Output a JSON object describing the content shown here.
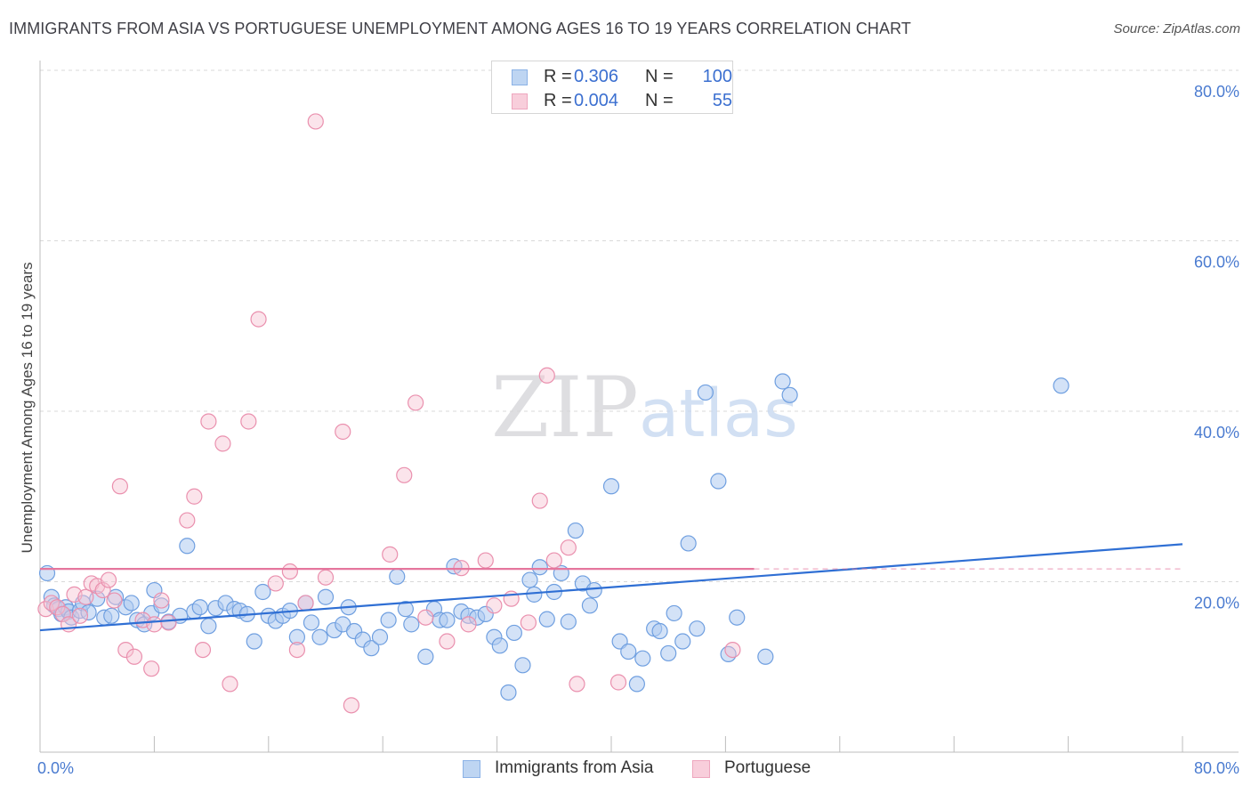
{
  "header": {
    "title": "IMMIGRANTS FROM ASIA VS PORTUGUESE UNEMPLOYMENT AMONG AGES 16 TO 19 YEARS CORRELATION CHART",
    "source": "Source: ZipAtlas.com"
  },
  "watermark": {
    "zip": "ZIP",
    "atlas": "atlas"
  },
  "stats_legend": {
    "rows": [
      {
        "r_label": "R =",
        "r_value": "0.306",
        "n_label": "N =",
        "n_value": "100",
        "color": "#8fb4e8"
      },
      {
        "r_label": "R =",
        "r_value": "0.004",
        "n_label": "N =",
        "n_value": "55",
        "color": "#f2a6bf"
      }
    ]
  },
  "series_legend": [
    {
      "name": "Immigrants from Asia",
      "color": "#8fb4e8"
    },
    {
      "name": "Portuguese",
      "color": "#f2a6bf"
    }
  ],
  "colors": {
    "asia_fill": "#aecbf0",
    "asia_stroke": "#6f9fe0",
    "asia_line": "#2f6fd4",
    "port_fill": "#f7c3d3",
    "port_stroke": "#ea90ae",
    "port_line": "#e5769d",
    "axis_text": "#4a7bd0",
    "grid": "#d9d9d9"
  },
  "chart_data": {
    "type": "scatter",
    "title": "IMMIGRANTS FROM ASIA VS PORTUGUESE UNEMPLOYMENT AMONG AGES 16 TO 19 YEARS CORRELATION CHART",
    "xlabel": "",
    "ylabel": "Unemployment Among Ages 16 to 19 years",
    "xlim": [
      0,
      80
    ],
    "ylim": [
      0,
      80
    ],
    "x_tick_labels": [
      "0.0%",
      "80.0%"
    ],
    "y_ticks": [
      20,
      40,
      60,
      80
    ],
    "y_tick_labels": [
      "20.0%",
      "40.0%",
      "60.0%",
      "80.0%"
    ],
    "grid": true,
    "legend_position": "top-center",
    "series": [
      {
        "name": "Immigrants from Asia",
        "r": 0.306,
        "n": 100,
        "trend": {
          "x": [
            0,
            80
          ],
          "y": [
            14.3,
            24.4
          ]
        },
        "points": [
          [
            0.5,
            21.0
          ],
          [
            0.8,
            18.2
          ],
          [
            1.0,
            17.2
          ],
          [
            1.3,
            16.8
          ],
          [
            1.5,
            16.2
          ],
          [
            1.8,
            17.0
          ],
          [
            2.0,
            16.5
          ],
          [
            2.2,
            15.8
          ],
          [
            2.8,
            16.6
          ],
          [
            3.0,
            17.5
          ],
          [
            3.4,
            16.4
          ],
          [
            4.0,
            18.0
          ],
          [
            4.5,
            15.8
          ],
          [
            5.0,
            16.0
          ],
          [
            5.3,
            18.2
          ],
          [
            6.0,
            17.0
          ],
          [
            6.4,
            17.5
          ],
          [
            6.8,
            15.5
          ],
          [
            7.3,
            15.0
          ],
          [
            7.8,
            16.3
          ],
          [
            8.0,
            19.0
          ],
          [
            8.5,
            17.2
          ],
          [
            9.0,
            15.3
          ],
          [
            9.8,
            16.0
          ],
          [
            10.3,
            24.2
          ],
          [
            10.8,
            16.5
          ],
          [
            11.2,
            17.0
          ],
          [
            11.8,
            14.8
          ],
          [
            12.3,
            16.9
          ],
          [
            13.0,
            17.5
          ],
          [
            13.6,
            16.8
          ],
          [
            14.0,
            16.6
          ],
          [
            14.5,
            16.2
          ],
          [
            15.0,
            13.0
          ],
          [
            15.6,
            18.8
          ],
          [
            16.0,
            16.0
          ],
          [
            16.5,
            15.4
          ],
          [
            17.0,
            16.0
          ],
          [
            17.5,
            16.6
          ],
          [
            18.0,
            13.5
          ],
          [
            18.6,
            17.5
          ],
          [
            19.0,
            15.2
          ],
          [
            19.6,
            13.5
          ],
          [
            20.0,
            18.2
          ],
          [
            20.6,
            14.3
          ],
          [
            21.2,
            15.0
          ],
          [
            21.6,
            17.0
          ],
          [
            22.0,
            14.2
          ],
          [
            22.6,
            13.2
          ],
          [
            23.2,
            12.2
          ],
          [
            23.8,
            13.5
          ],
          [
            24.4,
            15.5
          ],
          [
            25.0,
            20.6
          ],
          [
            25.6,
            16.8
          ],
          [
            26.0,
            15.0
          ],
          [
            27.0,
            11.2
          ],
          [
            27.6,
            16.8
          ],
          [
            28.0,
            15.5
          ],
          [
            28.5,
            15.5
          ],
          [
            29.0,
            21.8
          ],
          [
            29.5,
            16.5
          ],
          [
            30.0,
            16.0
          ],
          [
            30.6,
            15.8
          ],
          [
            31.2,
            16.2
          ],
          [
            31.8,
            13.5
          ],
          [
            32.2,
            12.5
          ],
          [
            32.8,
            7.0
          ],
          [
            33.2,
            14.0
          ],
          [
            33.8,
            10.2
          ],
          [
            34.3,
            20.2
          ],
          [
            34.6,
            18.5
          ],
          [
            35.0,
            21.7
          ],
          [
            35.5,
            15.6
          ],
          [
            36.0,
            18.8
          ],
          [
            36.5,
            21.0
          ],
          [
            37.0,
            15.3
          ],
          [
            37.5,
            26.0
          ],
          [
            38.0,
            19.8
          ],
          [
            38.5,
            17.2
          ],
          [
            38.8,
            19.0
          ],
          [
            40.0,
            31.2
          ],
          [
            40.6,
            13.0
          ],
          [
            41.2,
            11.8
          ],
          [
            41.8,
            8.0
          ],
          [
            42.2,
            11.0
          ],
          [
            43.0,
            14.5
          ],
          [
            43.4,
            14.2
          ],
          [
            44.0,
            11.6
          ],
          [
            44.4,
            16.3
          ],
          [
            45.0,
            13.0
          ],
          [
            45.4,
            24.5
          ],
          [
            46.0,
            14.5
          ],
          [
            46.6,
            42.2
          ],
          [
            47.5,
            31.8
          ],
          [
            48.2,
            11.5
          ],
          [
            48.8,
            15.8
          ],
          [
            50.8,
            11.2
          ],
          [
            52.0,
            43.5
          ],
          [
            52.5,
            41.9
          ],
          [
            71.5,
            43.0
          ]
        ]
      },
      {
        "name": "Portuguese",
        "r": 0.004,
        "n": 55,
        "trend": {
          "x": [
            0,
            50,
            80
          ],
          "y": [
            21.5,
            21.5,
            21.5
          ],
          "dashed_after": 50
        },
        "points": [
          [
            0.4,
            16.8
          ],
          [
            0.8,
            17.5
          ],
          [
            1.2,
            17.0
          ],
          [
            1.6,
            16.2
          ],
          [
            2.0,
            15.0
          ],
          [
            2.4,
            18.5
          ],
          [
            2.8,
            16.0
          ],
          [
            3.2,
            18.2
          ],
          [
            3.6,
            19.8
          ],
          [
            4.0,
            19.5
          ],
          [
            4.4,
            19.0
          ],
          [
            4.8,
            20.2
          ],
          [
            5.2,
            17.8
          ],
          [
            5.6,
            31.2
          ],
          [
            6.0,
            12.0
          ],
          [
            6.6,
            11.2
          ],
          [
            7.2,
            15.5
          ],
          [
            7.8,
            9.8
          ],
          [
            8.0,
            15.0
          ],
          [
            8.5,
            17.8
          ],
          [
            9.0,
            15.2
          ],
          [
            10.3,
            27.2
          ],
          [
            10.8,
            30.0
          ],
          [
            11.4,
            12.0
          ],
          [
            11.8,
            38.8
          ],
          [
            12.8,
            36.2
          ],
          [
            13.3,
            8.0
          ],
          [
            14.6,
            38.8
          ],
          [
            15.3,
            50.8
          ],
          [
            16.5,
            19.8
          ],
          [
            17.5,
            21.2
          ],
          [
            18.0,
            12.0
          ],
          [
            18.6,
            17.5
          ],
          [
            19.3,
            74.0
          ],
          [
            20.0,
            20.5
          ],
          [
            21.2,
            37.6
          ],
          [
            21.8,
            5.5
          ],
          [
            24.5,
            23.2
          ],
          [
            25.5,
            32.5
          ],
          [
            26.3,
            41.0
          ],
          [
            27.0,
            15.8
          ],
          [
            28.5,
            13.0
          ],
          [
            29.5,
            21.6
          ],
          [
            30.0,
            15.0
          ],
          [
            31.2,
            22.5
          ],
          [
            31.8,
            17.2
          ],
          [
            33.0,
            18.0
          ],
          [
            34.2,
            15.2
          ],
          [
            35.0,
            29.5
          ],
          [
            35.5,
            44.2
          ],
          [
            36.0,
            22.5
          ],
          [
            37.0,
            24.0
          ],
          [
            37.6,
            8.0
          ],
          [
            40.5,
            8.2
          ],
          [
            48.5,
            12.0
          ]
        ]
      }
    ]
  }
}
